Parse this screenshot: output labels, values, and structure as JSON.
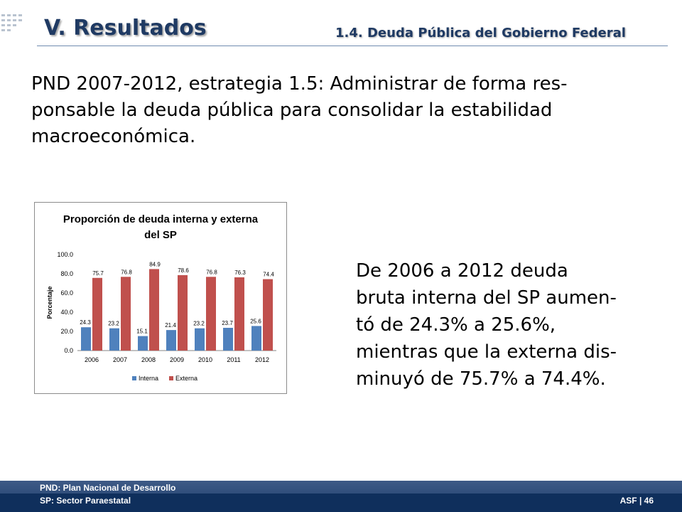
{
  "header": {
    "title": "V. Resultados",
    "section": "1.4. Deuda Pública del Gobierno Federal"
  },
  "strategy_text": "PND 2007-2012, estrategia 1.5: Administrar de forma res-\nponsable la deuda pública para consolidar la estabilidad\nmacroeconómica.",
  "summary_text": "De 2006 a 2012 deuda\nbruta interna del SP aumen-\ntó de 24.3% a 25.6%,\nmientras que la externa dis-\nminuyó de 75.7% a 74.4%.",
  "chart_data": {
    "type": "bar",
    "title_lines": [
      "Proporción de deuda interna y externa",
      "del SP"
    ],
    "ylabel": "Porcentaje",
    "xlabel": "",
    "ylim": [
      0,
      100
    ],
    "yticks": [
      "0.0",
      "20.0",
      "40.0",
      "60.0",
      "80.0",
      "100.0"
    ],
    "categories": [
      "2006",
      "2007",
      "2008",
      "2009",
      "2010",
      "2011",
      "2012"
    ],
    "series": [
      {
        "name": "Interna",
        "color": "#4f81bd",
        "values": [
          24.3,
          23.2,
          15.1,
          21.4,
          23.2,
          23.7,
          25.6
        ]
      },
      {
        "name": "Externa",
        "color": "#c0504d",
        "values": [
          75.7,
          76.8,
          84.9,
          78.6,
          76.8,
          76.3,
          74.4
        ]
      }
    ],
    "grid": false,
    "legend": "bottom"
  },
  "footer": {
    "note1": "PND: Plan Nacional de Desarrollo",
    "note2": "SP: Sector Paraestatal",
    "page": "ASF | 46"
  },
  "colors": {
    "title": "#1f3a63",
    "footer": "#1c3d6c"
  }
}
